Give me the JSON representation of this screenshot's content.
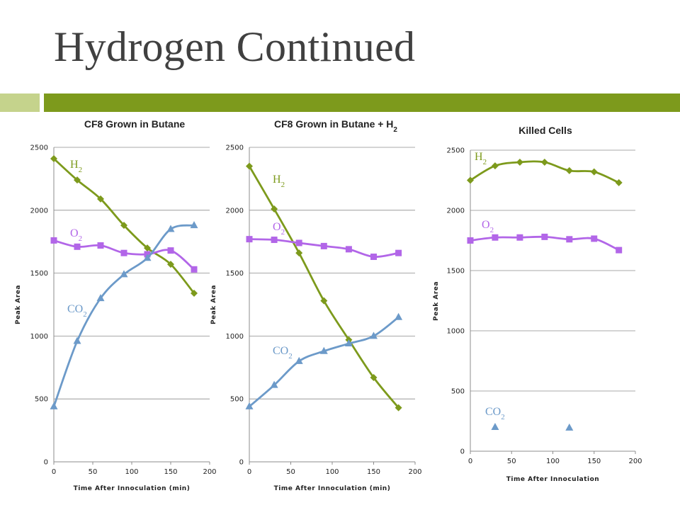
{
  "slide": {
    "title": "Hydrogen Continued"
  },
  "chart_data": [
    {
      "type": "line",
      "title": "CF8 Grown in Butane",
      "xlabel": "Time After Innoculation (min)",
      "ylabel": "Peak Area",
      "xlim": [
        0,
        200
      ],
      "ylim": [
        0,
        2500
      ],
      "x_ticks": [
        "0",
        "50",
        "100",
        "150",
        "200"
      ],
      "y_ticks": [
        "0",
        "500",
        "1000",
        "1500",
        "2000",
        "2500"
      ],
      "grid": true,
      "legend": "inline labels",
      "series": [
        {
          "name": "H2",
          "label_main": "H",
          "label_sub": "2",
          "color": "#7d9a1c",
          "marker": "diamond",
          "x": [
            0,
            30,
            60,
            90,
            120,
            150,
            180
          ],
          "y": [
            2410,
            2240,
            2090,
            1880,
            1700,
            1570,
            1340
          ]
        },
        {
          "name": "O2",
          "label_main": "O",
          "label_sub": "2",
          "color": "#b266e8",
          "marker": "square",
          "x": [
            0,
            30,
            60,
            90,
            120,
            150,
            180
          ],
          "y": [
            1760,
            1710,
            1720,
            1660,
            1650,
            1680,
            1530
          ]
        },
        {
          "name": "CO2",
          "label_main": "CO",
          "label_sub": "2",
          "color": "#6c9ac9",
          "marker": "triangle",
          "x": [
            0,
            30,
            60,
            90,
            120,
            150,
            180
          ],
          "y": [
            440,
            960,
            1300,
            1490,
            1620,
            1850,
            1880
          ]
        }
      ]
    },
    {
      "type": "line",
      "title": "CF8 Grown in Butane + H",
      "title_sub": "2",
      "xlabel": "Time After Innoculation (min)",
      "ylabel": "Peak Area",
      "xlim": [
        0,
        200
      ],
      "ylim": [
        0,
        2500
      ],
      "x_ticks": [
        "0",
        "50",
        "100",
        "150",
        "200"
      ],
      "y_ticks": [
        "0",
        "500",
        "1000",
        "1500",
        "2000",
        "2500"
      ],
      "grid": true,
      "legend": "inline labels",
      "series": [
        {
          "name": "H2",
          "label_main": "H",
          "label_sub": "2",
          "color": "#7d9a1c",
          "marker": "diamond",
          "x": [
            0,
            30,
            60,
            90,
            120,
            150,
            180
          ],
          "y": [
            2350,
            2010,
            1660,
            1280,
            970,
            670,
            430
          ]
        },
        {
          "name": "O2",
          "label_main": "O",
          "label_sub": "2",
          "color": "#b266e8",
          "marker": "square",
          "x": [
            0,
            30,
            60,
            90,
            120,
            150,
            180
          ],
          "y": [
            1770,
            1765,
            1740,
            1715,
            1690,
            1630,
            1660
          ]
        },
        {
          "name": "CO2",
          "label_main": "CO",
          "label_sub": "2",
          "color": "#6c9ac9",
          "marker": "triangle",
          "x": [
            0,
            30,
            60,
            90,
            120,
            150,
            180
          ],
          "y": [
            440,
            610,
            800,
            880,
            940,
            1000,
            1150
          ]
        }
      ]
    },
    {
      "type": "line",
      "title": "Killed Cells",
      "xlabel": "Time After Innoculation",
      "ylabel": "Peak Area",
      "xlim": [
        0,
        200
      ],
      "ylim": [
        0,
        2500
      ],
      "x_ticks": [
        "0",
        "50",
        "100",
        "150",
        "200"
      ],
      "y_ticks": [
        "0",
        "500",
        "1000",
        "1500",
        "2000",
        "2500"
      ],
      "grid": true,
      "legend": "inline labels",
      "series": [
        {
          "name": "H2",
          "label_main": "H",
          "label_sub": "2",
          "color": "#7d9a1c",
          "marker": "diamond",
          "x": [
            0,
            30,
            60,
            90,
            120,
            150,
            180
          ],
          "y": [
            2250,
            2370,
            2400,
            2400,
            2330,
            2320,
            2230
          ]
        },
        {
          "name": "O2",
          "label_main": "O",
          "label_sub": "2",
          "color": "#b266e8",
          "marker": "square",
          "x": [
            0,
            30,
            60,
            90,
            120,
            150,
            180
          ],
          "y": [
            1750,
            1775,
            1775,
            1780,
            1760,
            1765,
            1670
          ]
        },
        {
          "name": "CO2",
          "label_main": "CO",
          "label_sub": "2",
          "color": "#6c9ac9",
          "marker": "triangle",
          "no_line": true,
          "x": [
            30,
            120
          ],
          "y": [
            200,
            195
          ]
        }
      ]
    }
  ]
}
